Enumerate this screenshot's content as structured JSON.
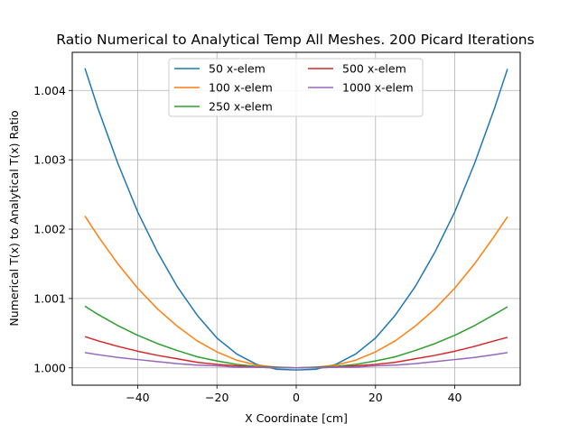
{
  "chart_data": {
    "type": "line",
    "title": "Ratio Numerical to Analytical Temp All Meshes. 200 Picard Iterations",
    "xlabel": "X Coordinate [cm]",
    "ylabel": "Numerical T(x) to Analytical T(x) Ratio",
    "xlim": [
      -56.5,
      56.5
    ],
    "ylim": [
      0.99975,
      1.00455
    ],
    "xticks": [
      -40,
      -20,
      0,
      20,
      40
    ],
    "xtick_labels": [
      "−40",
      "−20",
      "0",
      "20",
      "40"
    ],
    "yticks": [
      1.0,
      1.001,
      1.002,
      1.003,
      1.004
    ],
    "ytick_labels": [
      "1.000",
      "1.001",
      "1.002",
      "1.003",
      "1.004"
    ],
    "grid": true,
    "legend_position": "top-center",
    "legend_columns": 2,
    "series": [
      {
        "name": "50 x-elem",
        "color": "#1f77b4",
        "x": [
          -53.3,
          -50,
          -45,
          -40,
          -35,
          -30,
          -25,
          -20,
          -15,
          -10,
          -5,
          0,
          5,
          10,
          15,
          20,
          25,
          30,
          35,
          40,
          45,
          50,
          53.3
        ],
        "y": [
          1.00432,
          1.00374,
          1.00295,
          1.00225,
          1.00167,
          1.00117,
          1.00076,
          1.00043,
          1.0002,
          1.00005,
          0.99998,
          0.99997,
          0.99998,
          1.00005,
          1.0002,
          1.00043,
          1.00076,
          1.00117,
          1.00167,
          1.00225,
          1.00295,
          1.00374,
          1.00431
        ]
      },
      {
        "name": "100 x-elem",
        "color": "#ff7f0e",
        "x": [
          -53.3,
          -50,
          -45,
          -40,
          -35,
          -30,
          -25,
          -20,
          -15,
          -10,
          -5,
          0,
          5,
          10,
          15,
          20,
          25,
          30,
          35,
          40,
          45,
          50,
          53.3
        ],
        "y": [
          1.00219,
          1.0019,
          1.0015,
          1.00115,
          1.00085,
          1.0006,
          1.00039,
          1.00023,
          1.00011,
          1.00004,
          1.00001,
          1.0,
          1.00001,
          1.00004,
          1.00011,
          1.00023,
          1.00039,
          1.0006,
          1.00085,
          1.00115,
          1.0015,
          1.0019,
          1.00218
        ]
      },
      {
        "name": "250 x-elem",
        "color": "#2ca02c",
        "x": [
          -53.3,
          -50,
          -45,
          -40,
          -35,
          -30,
          -25,
          -20,
          -15,
          -10,
          -5,
          0,
          5,
          10,
          15,
          20,
          25,
          30,
          35,
          40,
          45,
          50,
          53.3
        ],
        "y": [
          1.00089,
          1.00077,
          1.00061,
          1.00047,
          1.00035,
          1.00025,
          1.00016,
          1.0001,
          1.00005,
          1.00002,
          1.00001,
          1.0,
          1.00001,
          1.00002,
          1.00005,
          1.0001,
          1.00016,
          1.00025,
          1.00035,
          1.00047,
          1.00061,
          1.00077,
          1.00088
        ]
      },
      {
        "name": "500 x-elem",
        "color": "#d62728",
        "x": [
          -53.3,
          -50,
          -45,
          -40,
          -35,
          -30,
          -25,
          -20,
          -15,
          -10,
          -5,
          0,
          5,
          10,
          15,
          20,
          25,
          30,
          35,
          40,
          45,
          50,
          53.3
        ],
        "y": [
          1.00045,
          1.00039,
          1.00031,
          1.00024,
          1.00018,
          1.00013,
          1.00008,
          1.00005,
          1.00003,
          1.00001,
          1.0,
          1.0,
          1.0,
          1.00001,
          1.00003,
          1.00005,
          1.00008,
          1.00013,
          1.00018,
          1.00024,
          1.00031,
          1.00039,
          1.00044
        ]
      },
      {
        "name": "1000 x-elem",
        "color": "#9467bd",
        "x": [
          -53.3,
          -50,
          -45,
          -40,
          -35,
          -30,
          -25,
          -20,
          -15,
          -10,
          -5,
          0,
          5,
          10,
          15,
          20,
          25,
          30,
          35,
          40,
          45,
          50,
          53.3
        ],
        "y": [
          1.00022,
          1.00019,
          1.00015,
          1.00012,
          1.00009,
          1.00006,
          1.00004,
          1.00003,
          1.00001,
          1.00001,
          1.0,
          1.0,
          1.0,
          1.00001,
          1.00001,
          1.00003,
          1.00004,
          1.00006,
          1.00009,
          1.00012,
          1.00015,
          1.00019,
          1.00022
        ]
      }
    ]
  }
}
